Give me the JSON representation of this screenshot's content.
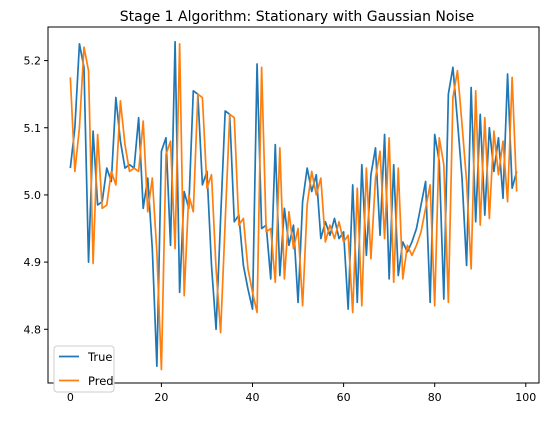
{
  "chart_data": {
    "type": "line",
    "title": "Stage 1 Algorithm: Stationary with Gaussian Noise",
    "xlabel": "",
    "ylabel": "",
    "xlim": [
      -4.9,
      102.9
    ],
    "ylim": [
      4.72,
      5.25
    ],
    "xticks": [
      0,
      20,
      40,
      60,
      80,
      100
    ],
    "yticks": [
      4.8,
      4.9,
      5.0,
      5.1,
      5.2
    ],
    "ytick_labels": [
      "4.8",
      "4.9",
      "5.0",
      "5.1",
      "5.2"
    ],
    "grid": false,
    "legend_position": "lower-left",
    "series": [
      {
        "name": "True",
        "color": "#1f77b4",
        "x": [
          0,
          1,
          2,
          3,
          4,
          5,
          6,
          7,
          8,
          9,
          10,
          11,
          12,
          13,
          14,
          15,
          16,
          17,
          18,
          19,
          20,
          21,
          22,
          23,
          24,
          25,
          26,
          27,
          28,
          29,
          30,
          31,
          32,
          33,
          34,
          35,
          36,
          37,
          38,
          39,
          40,
          41,
          42,
          43,
          44,
          45,
          46,
          47,
          48,
          49,
          50,
          51,
          52,
          53,
          54,
          55,
          56,
          57,
          58,
          59,
          60,
          61,
          62,
          63,
          64,
          65,
          66,
          67,
          68,
          69,
          70,
          71,
          72,
          73,
          74,
          75,
          76,
          77,
          78,
          79,
          80,
          81,
          82,
          83,
          84,
          85,
          86,
          87,
          88,
          89,
          90,
          91,
          92,
          93,
          94,
          95,
          96,
          97,
          98
        ],
        "values": [
          5.04,
          5.1,
          5.225,
          5.19,
          4.9,
          5.095,
          4.985,
          4.99,
          5.04,
          5.02,
          5.145,
          5.08,
          5.04,
          5.045,
          5.04,
          5.115,
          4.98,
          5.025,
          4.92,
          4.745,
          5.065,
          5.085,
          4.925,
          5.228,
          4.855,
          5.005,
          4.98,
          5.155,
          5.15,
          5.015,
          5.035,
          4.895,
          4.8,
          4.965,
          5.125,
          5.12,
          4.96,
          4.97,
          4.895,
          4.86,
          4.83,
          5.195,
          4.95,
          4.955,
          4.875,
          5.075,
          4.88,
          4.98,
          4.925,
          4.955,
          4.84,
          4.99,
          5.04,
          5.005,
          5.03,
          4.935,
          4.96,
          4.94,
          4.965,
          4.935,
          4.945,
          4.83,
          5.015,
          4.84,
          5.045,
          4.91,
          5.03,
          5.07,
          4.94,
          5.09,
          4.875,
          5.045,
          4.88,
          4.93,
          4.915,
          4.93,
          4.95,
          4.985,
          5.02,
          4.84,
          5.09,
          5.05,
          4.845,
          5.15,
          5.19,
          5.11,
          5.025,
          4.895,
          5.16,
          4.96,
          5.12,
          4.97,
          5.1,
          5.035,
          5.085,
          4.995,
          5.18,
          5.01,
          5.035
        ]
      },
      {
        "name": "Pred",
        "color": "#ff7f0e",
        "x": [
          0,
          1,
          2,
          3,
          4,
          5,
          6,
          7,
          8,
          9,
          10,
          11,
          12,
          13,
          14,
          15,
          16,
          17,
          18,
          19,
          20,
          21,
          22,
          23,
          24,
          25,
          26,
          27,
          28,
          29,
          30,
          31,
          32,
          33,
          34,
          35,
          36,
          37,
          38,
          39,
          40,
          41,
          42,
          43,
          44,
          45,
          46,
          47,
          48,
          49,
          50,
          51,
          52,
          53,
          54,
          55,
          56,
          57,
          58,
          59,
          60,
          61,
          62,
          63,
          64,
          65,
          66,
          67,
          68,
          69,
          70,
          71,
          72,
          73,
          74,
          75,
          76,
          77,
          78,
          79,
          80,
          81,
          82,
          83,
          84,
          85,
          86,
          87,
          88,
          89,
          90,
          91,
          92,
          93,
          94,
          95,
          96,
          97,
          98
        ],
        "values": [
          5.175,
          5.035,
          5.1,
          5.22,
          5.185,
          4.898,
          5.09,
          4.98,
          4.985,
          5.035,
          5.015,
          5.14,
          5.075,
          5.035,
          5.04,
          5.035,
          5.11,
          4.975,
          5.025,
          4.915,
          4.74,
          5.06,
          5.08,
          4.92,
          5.225,
          4.85,
          5.0,
          4.975,
          5.15,
          5.145,
          5.01,
          5.03,
          4.89,
          4.795,
          4.96,
          5.12,
          5.115,
          4.955,
          4.965,
          4.89,
          4.855,
          4.825,
          5.19,
          4.945,
          4.95,
          4.87,
          5.07,
          4.875,
          4.975,
          4.92,
          4.95,
          4.835,
          4.985,
          5.035,
          5.0,
          5.025,
          4.93,
          4.955,
          4.935,
          4.96,
          4.93,
          4.94,
          4.825,
          5.01,
          4.835,
          5.04,
          4.905,
          5.025,
          5.065,
          4.935,
          5.085,
          4.87,
          5.04,
          4.875,
          4.925,
          4.91,
          4.925,
          4.945,
          4.98,
          5.015,
          4.835,
          5.085,
          5.045,
          4.84,
          5.145,
          5.185,
          5.105,
          5.02,
          4.89,
          5.155,
          4.955,
          5.115,
          4.965,
          5.095,
          5.03,
          5.08,
          4.99,
          5.175,
          5.005
        ]
      }
    ]
  }
}
